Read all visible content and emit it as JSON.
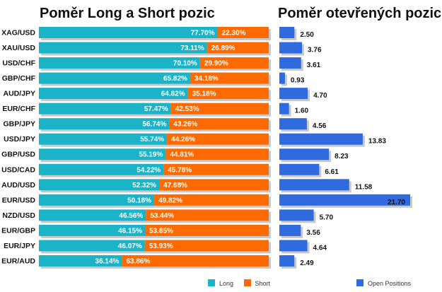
{
  "titles": {
    "left": "Poměr Long a Short pozic",
    "right": "Poměr otevřených pozic"
  },
  "legend": {
    "long": "Long",
    "short": "Short",
    "open": "Open Positions"
  },
  "colors": {
    "long": "#1BB3C8",
    "short": "#FF6A00",
    "open": "#2F6BDE",
    "shadow": "#C9C9C9"
  },
  "chart_data": [
    {
      "type": "bar",
      "stacked": true,
      "orientation": "horizontal",
      "title": "Poměr Long a Short pozic",
      "categories": [
        "XAG/USD",
        "XAU/USD",
        "USD/CHF",
        "GBP/CHF",
        "AUD/JPY",
        "EUR/CHF",
        "GBP/JPY",
        "USD/JPY",
        "GBP/USD",
        "USD/CAD",
        "AUD/USD",
        "EUR/USD",
        "NZD/USD",
        "EUR/GBP",
        "EUR/JPY",
        "EUR/AUD"
      ],
      "series": [
        {
          "name": "Long",
          "values": [
            77.7,
            73.11,
            70.1,
            65.82,
            64.82,
            57.47,
            56.74,
            55.74,
            55.19,
            54.22,
            52.32,
            50.18,
            46.56,
            46.15,
            46.07,
            36.14
          ]
        },
        {
          "name": "Short",
          "values": [
            22.3,
            26.89,
            29.9,
            34.18,
            35.18,
            42.53,
            43.26,
            44.26,
            44.81,
            45.78,
            47.68,
            49.82,
            53.44,
            53.85,
            53.93,
            63.86
          ]
        }
      ],
      "value_labels": {
        "long": [
          "77.70%",
          "73.11%",
          "70.10%",
          "65.82%",
          "64.82%",
          "57.47%",
          "56.74%",
          "55.74%",
          "55.19%",
          "54.22%",
          "52.32%",
          "50.18%",
          "46.56%",
          "46.15%",
          "46.07%",
          "36.14%"
        ],
        "short": [
          "22.30%",
          "26.89%",
          "29.90%",
          "34.18%",
          "35.18%",
          "42.53%",
          "43.26%",
          "44.26%",
          "44.81%",
          "45.78%",
          "47.68%",
          "49.82%",
          "53.44%",
          "53.85%",
          "53.93%",
          "63.86%"
        ]
      },
      "xlim": [
        0,
        100
      ],
      "legend": "bottom"
    },
    {
      "type": "bar",
      "orientation": "horizontal",
      "title": "Poměr otevřených pozic",
      "categories": [
        "XAG/USD",
        "XAU/USD",
        "USD/CHF",
        "GBP/CHF",
        "AUD/JPY",
        "EUR/CHF",
        "GBP/JPY",
        "USD/JPY",
        "GBP/USD",
        "USD/CAD",
        "AUD/USD",
        "EUR/USD",
        "NZD/USD",
        "EUR/GBP",
        "EUR/JPY",
        "EUR/AUD"
      ],
      "series": [
        {
          "name": "Open Positions",
          "values": [
            2.5,
            3.76,
            3.61,
            0.93,
            4.7,
            1.6,
            4.56,
            13.83,
            8.23,
            6.61,
            11.58,
            21.7,
            5.7,
            3.56,
            4.64,
            2.49
          ]
        }
      ],
      "value_labels": [
        "2.50",
        "3.76",
        "3.61",
        "0.93",
        "4.70",
        "1.60",
        "4.56",
        "13.83",
        "8.23",
        "6.61",
        "11.58",
        "21.70",
        "5.70",
        "3.56",
        "4.64",
        "2.49"
      ],
      "xlim": [
        0,
        21.7
      ],
      "legend": "bottom"
    }
  ]
}
